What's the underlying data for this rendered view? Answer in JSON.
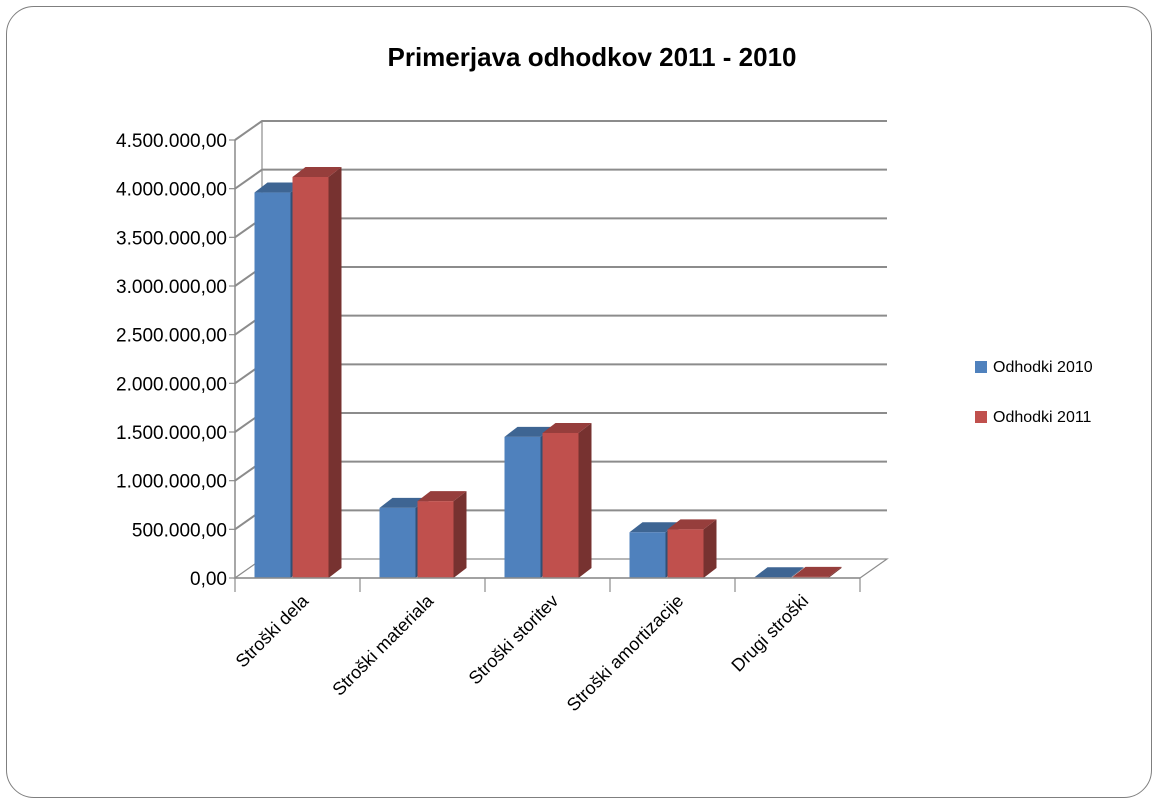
{
  "chart_data": {
    "type": "bar",
    "title": "Primerjava odhodkov 2011 - 2010",
    "categories": [
      "Stroški dela",
      "Stroški materiala",
      "Stroški storitev",
      "Stroški amortizacije",
      "Drugi stroški"
    ],
    "series": [
      {
        "name": "Odhodki 2010",
        "color": "#4F81BD",
        "values": [
          3960000,
          720000,
          1450000,
          470000,
          8000
        ]
      },
      {
        "name": "Odhodki 2011",
        "color": "#C0504D",
        "values": [
          4120000,
          790000,
          1490000,
          500000,
          12000
        ]
      }
    ],
    "yticks": [
      "0,00",
      "500.000,00",
      "1.000.000,00",
      "1.500.000,00",
      "2.000.000,00",
      "2.500.000,00",
      "3.000.000,00",
      "3.500.000,00",
      "4.000.000,00",
      "4.500.000,00"
    ],
    "ylim": [
      0,
      4500000
    ],
    "grid": true,
    "legend_position": "right",
    "style": "3d-clustered-column"
  }
}
